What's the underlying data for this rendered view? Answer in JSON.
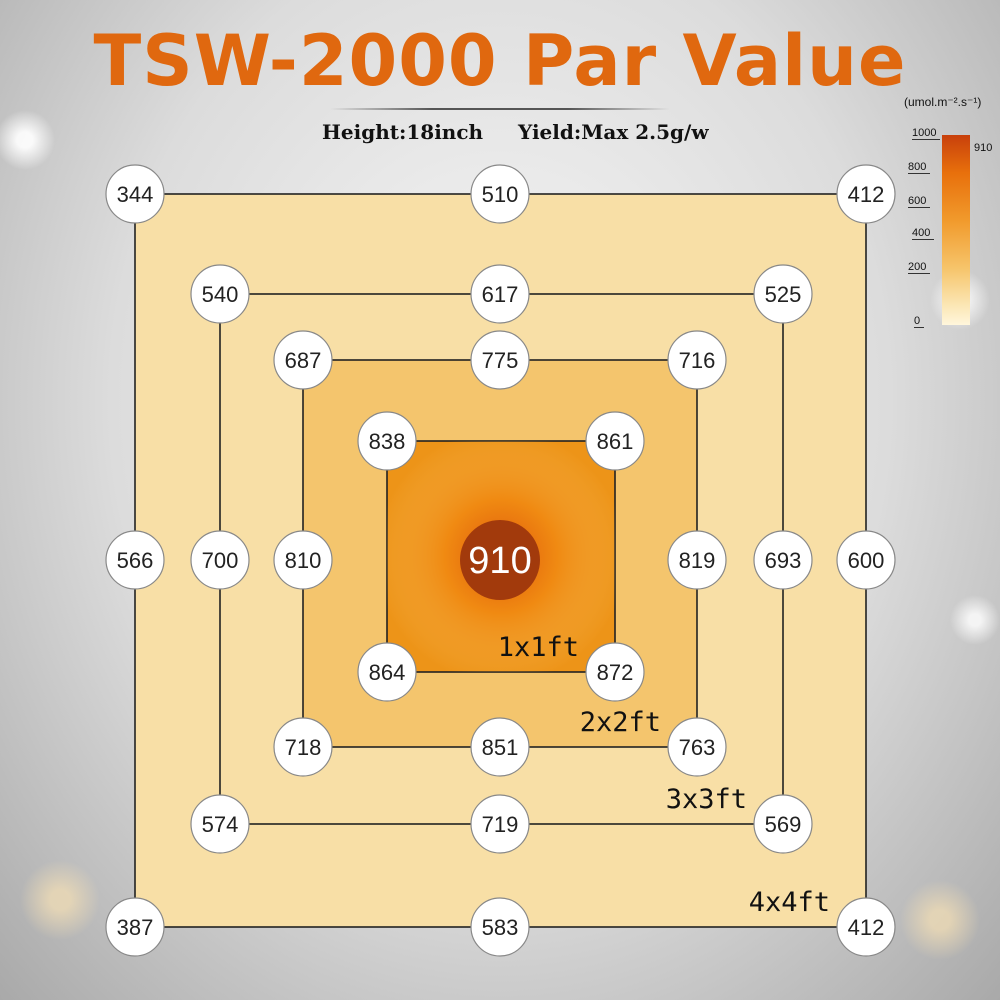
{
  "title": "TSW-2000 Par Value",
  "subtitle": {
    "height": "Height:18inch",
    "yield": "Yield:Max 2.5g/w"
  },
  "center_value": "910",
  "nodes": [
    {
      "v": "344",
      "c": 0,
      "r": 0
    },
    {
      "v": "510",
      "c": 4,
      "r": 0
    },
    {
      "v": "412",
      "c": 8,
      "r": 0
    },
    {
      "v": "540",
      "c": 1,
      "r": 1
    },
    {
      "v": "617",
      "c": 4,
      "r": 1
    },
    {
      "v": "525",
      "c": 7,
      "r": 1
    },
    {
      "v": "687",
      "c": 2,
      "r": 2
    },
    {
      "v": "775",
      "c": 4,
      "r": 2
    },
    {
      "v": "716",
      "c": 6,
      "r": 2
    },
    {
      "v": "838",
      "c": 3,
      "r": 3
    },
    {
      "v": "861",
      "c": 5,
      "r": 3
    },
    {
      "v": "566",
      "c": 0,
      "r": 4
    },
    {
      "v": "700",
      "c": 1,
      "r": 4
    },
    {
      "v": "810",
      "c": 2,
      "r": 4
    },
    {
      "v": "819",
      "c": 6,
      "r": 4
    },
    {
      "v": "693",
      "c": 7,
      "r": 4
    },
    {
      "v": "600",
      "c": 8,
      "r": 4
    },
    {
      "v": "864",
      "c": 3,
      "r": 5
    },
    {
      "v": "872",
      "c": 5,
      "r": 5
    },
    {
      "v": "718",
      "c": 2,
      "r": 6
    },
    {
      "v": "851",
      "c": 4,
      "r": 6
    },
    {
      "v": "763",
      "c": 6,
      "r": 6
    },
    {
      "v": "574",
      "c": 1,
      "r": 7
    },
    {
      "v": "719",
      "c": 4,
      "r": 7
    },
    {
      "v": "569",
      "c": 7,
      "r": 7
    },
    {
      "v": "387",
      "c": 0,
      "r": 8
    },
    {
      "v": "583",
      "c": 4,
      "r": 8
    },
    {
      "v": "412",
      "c": 8,
      "r": 8
    }
  ],
  "areas": [
    {
      "label": "1x1ft",
      "ring": 3
    },
    {
      "label": "2x2ft",
      "ring": 2
    },
    {
      "label": "3x3ft",
      "ring": 1
    },
    {
      "label": "4x4ft",
      "ring": 0
    }
  ],
  "legend": {
    "unit": "(umol.m⁻².s⁻¹)",
    "ticks": [
      "1000",
      "800",
      "600",
      "400",
      "200",
      "0"
    ],
    "max_value": "910"
  },
  "colors": {
    "title": "#e0680f",
    "outer_square": "#f8dfa6",
    "mid_square": "#f4c56d",
    "inner_square": "#ed9418",
    "core": "#e06d0a",
    "center_dot": "#a23a0c"
  }
}
